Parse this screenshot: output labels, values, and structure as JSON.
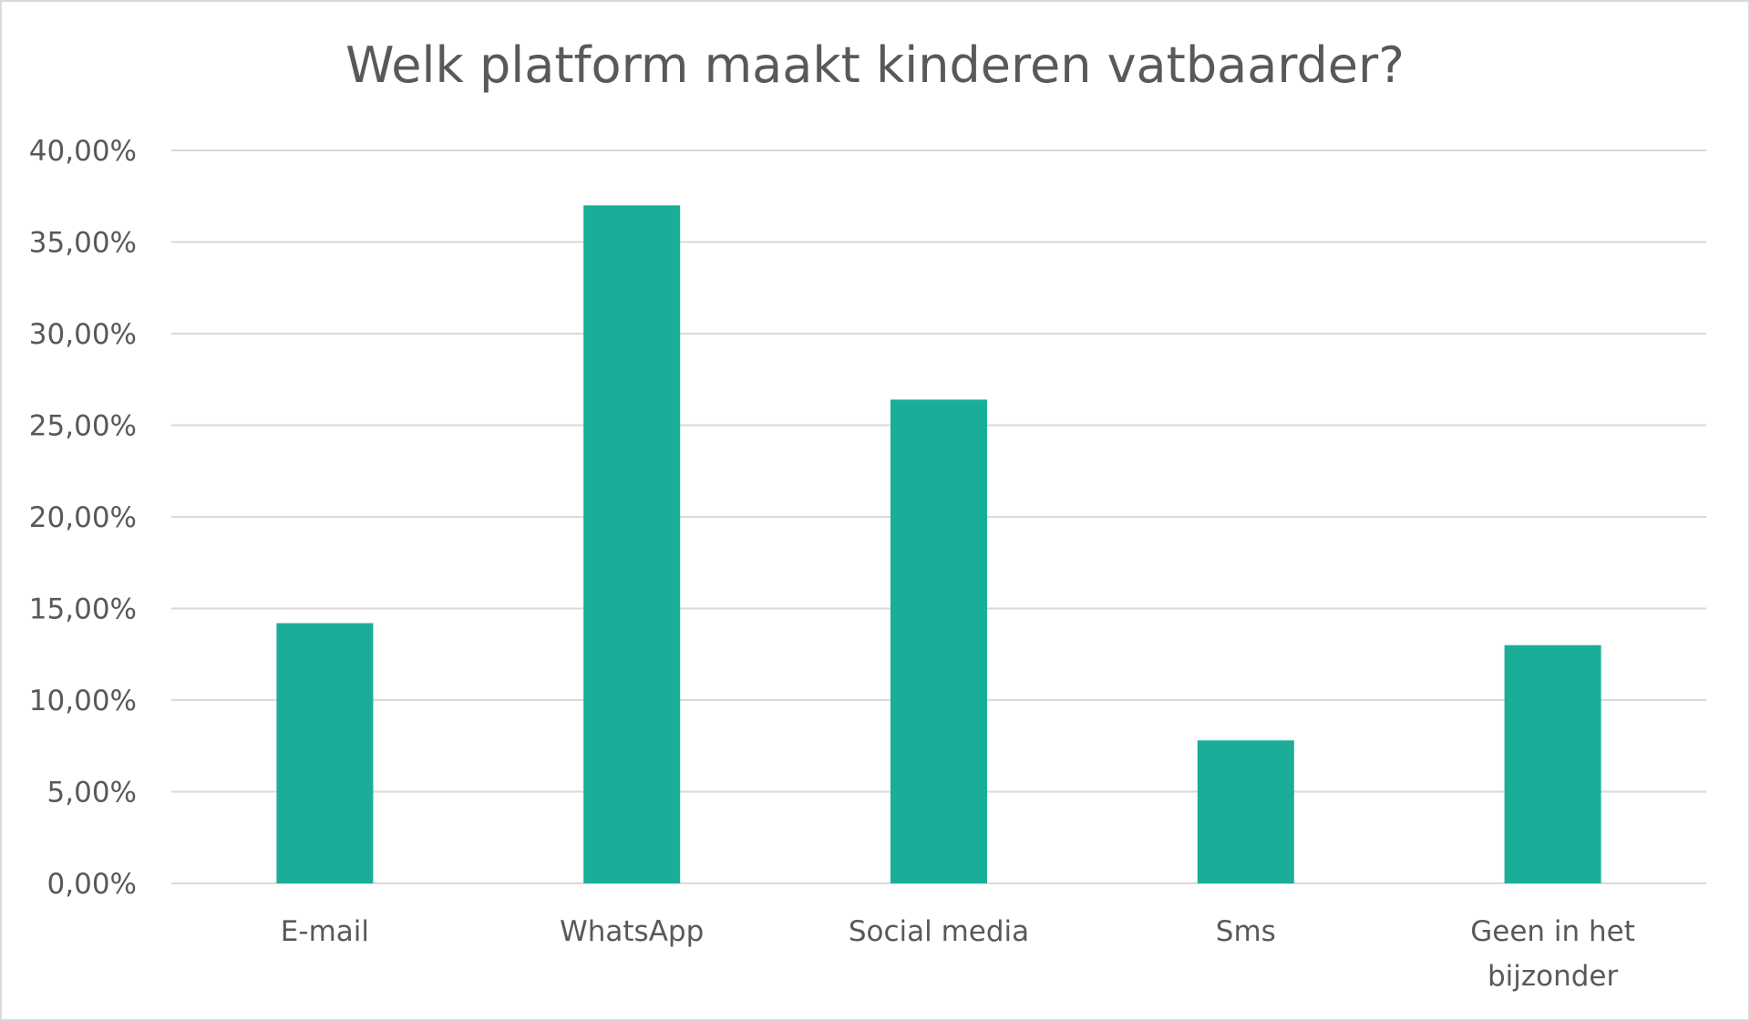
{
  "chart_data": {
    "type": "bar",
    "title": "Welk platform maakt kinderen vatbaarder?",
    "categories": [
      "E-mail",
      "WhatsApp",
      "Social media",
      "Sms",
      "Geen in het bijzonder"
    ],
    "category_lines": [
      [
        "E-mail"
      ],
      [
        "WhatsApp"
      ],
      [
        "Social media"
      ],
      [
        "Sms"
      ],
      [
        "Geen in het",
        "bijzonder"
      ]
    ],
    "values": [
      14.2,
      37.0,
      26.4,
      7.8,
      13.0
    ],
    "ylim": [
      0,
      40
    ],
    "yticks": [
      0,
      5,
      10,
      15,
      20,
      25,
      30,
      35,
      40
    ],
    "ytick_labels": [
      "0,00%",
      "5,00%",
      "10,00%",
      "15,00%",
      "20,00%",
      "25,00%",
      "30,00%",
      "35,00%",
      "40,00%"
    ],
    "grid": true,
    "legend": "none",
    "bar_color": "#1aae99",
    "grid_color": "#d9d9d9"
  }
}
